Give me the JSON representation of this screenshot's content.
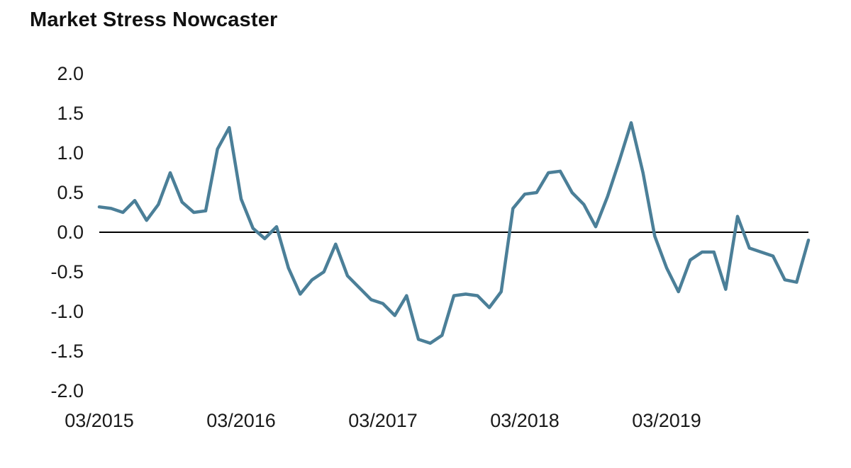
{
  "chart_data": {
    "type": "line",
    "title": "Market Stress Nowcaster",
    "xlabel": "",
    "ylabel": "",
    "ylim": [
      -2.0,
      2.0
    ],
    "grid": false,
    "legend": "none",
    "line_color": "#4b7f98",
    "zero_line_color": "#000000",
    "yticks": [
      2.0,
      1.5,
      1.0,
      0.5,
      0.0,
      -0.5,
      -1.0,
      -1.5,
      -2.0
    ],
    "ytick_labels": [
      "2.0",
      "1.5",
      "1.0",
      "0.5",
      "0.0",
      "-0.5",
      "-1.0",
      "-1.5",
      "-2.0"
    ],
    "x_tick_labels": [
      "03/2015",
      "03/2016",
      "03/2017",
      "03/2018",
      "03/2019"
    ],
    "x_tick_indices": [
      0,
      12,
      24,
      36,
      48
    ],
    "x_frequency": "monthly",
    "values": [
      0.32,
      0.3,
      0.25,
      0.4,
      0.15,
      0.35,
      0.75,
      0.38,
      0.25,
      0.27,
      1.05,
      1.32,
      0.42,
      0.05,
      -0.08,
      0.07,
      -0.45,
      -0.78,
      -0.6,
      -0.5,
      -0.15,
      -0.55,
      -0.7,
      -0.85,
      -0.9,
      -1.05,
      -0.8,
      -1.35,
      -1.4,
      -1.3,
      -0.8,
      -0.78,
      -0.8,
      -0.95,
      -0.75,
      0.3,
      0.48,
      0.5,
      0.75,
      0.77,
      0.5,
      0.35,
      0.07,
      0.45,
      0.9,
      1.38,
      0.75,
      -0.05,
      -0.45,
      -0.75,
      -0.35,
      -0.25,
      -0.25,
      -0.72,
      0.2,
      -0.2,
      -0.25,
      -0.3,
      -0.6,
      -0.63,
      -0.1
    ]
  }
}
